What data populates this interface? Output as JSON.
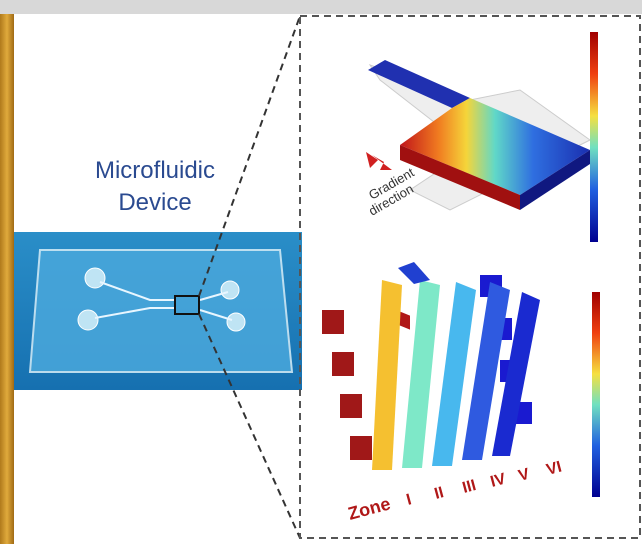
{
  "device_label": {
    "line1": "Microfluidic",
    "line2": "Device"
  },
  "gradient_label": {
    "line1": "Gradient",
    "line2": "direction"
  },
  "zone_label": "Zone",
  "zones": [
    "I",
    "II",
    "III",
    "IV",
    "V",
    "VI"
  ]
}
